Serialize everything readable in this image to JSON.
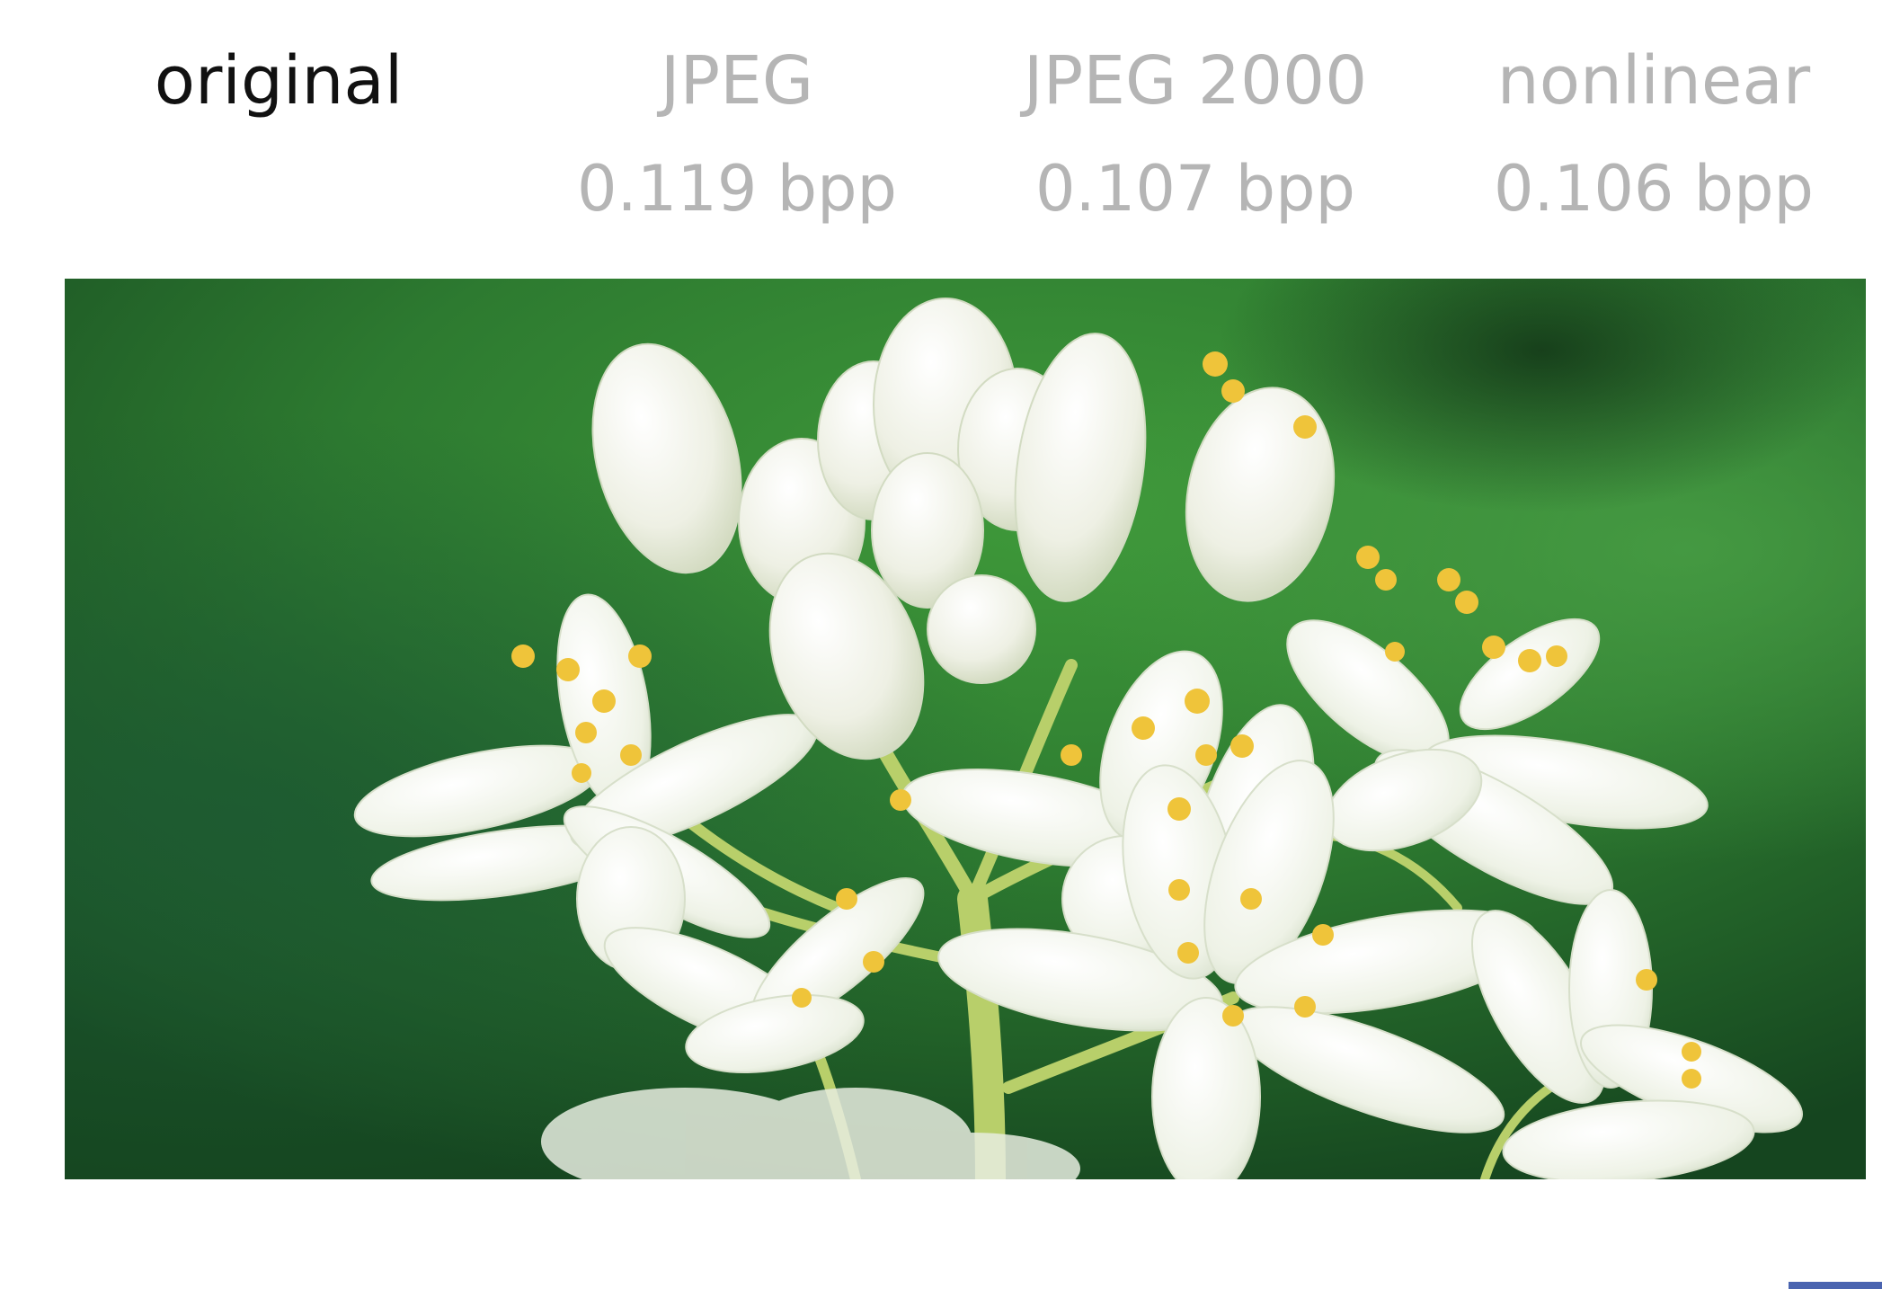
{
  "columns": [
    {
      "method": "original",
      "rate": ""
    },
    {
      "method": "JPEG",
      "rate": "0.119 bpp"
    },
    {
      "method": "JPEG 2000",
      "rate": "0.107 bpp"
    },
    {
      "method": "nonlinear",
      "rate": "0.106 bpp"
    }
  ],
  "active_column": 0,
  "photo": {
    "subject": "white-flower-cluster"
  },
  "colors": {
    "active_text": "#111111",
    "inactive_text": "#b5b5b5",
    "background_green": "#2f7a34",
    "petal_white": "#f6f8f2",
    "stamen_yellow": "#efc43a",
    "accent_blue": "#4a64b0"
  }
}
